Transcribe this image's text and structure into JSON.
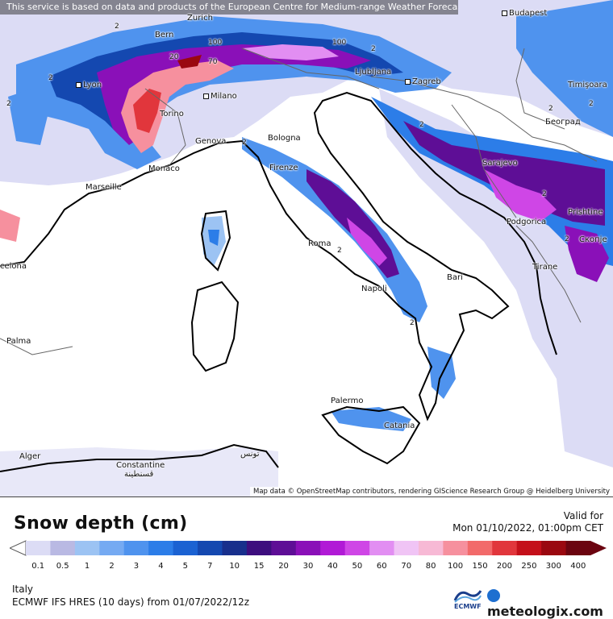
{
  "notice": "This service is based on data and products of the European Centre for Medium-range Weather Forecasts (ECMWF)",
  "attribution": "Map data © OpenStreetMap contributors, rendering GIScience Research Group @ Heidelberg University",
  "cities": [
    {
      "name": "Zurich"
    },
    {
      "name": "Budapest"
    },
    {
      "name": "Bern"
    },
    {
      "name": "Ljubljana"
    },
    {
      "name": "Zagreb"
    },
    {
      "name": "Lyon"
    },
    {
      "name": "Milano"
    },
    {
      "name": "Timişoara"
    },
    {
      "name": "Torino"
    },
    {
      "name": "Београд"
    },
    {
      "name": "Genova"
    },
    {
      "name": "Bologna"
    },
    {
      "name": "Monaco"
    },
    {
      "name": "Sarajevo"
    },
    {
      "name": "Firenze"
    },
    {
      "name": "Marseille"
    },
    {
      "name": "Podgorica"
    },
    {
      "name": "Prishtine"
    },
    {
      "name": "Скопје"
    },
    {
      "name": "Roma"
    },
    {
      "name": "celona"
    },
    {
      "name": "Bari"
    },
    {
      "name": "Tirane"
    },
    {
      "name": "Napoli"
    },
    {
      "name": "Palma"
    },
    {
      "name": "Palermo"
    },
    {
      "name": "Catania"
    },
    {
      "name": "Alger"
    },
    {
      "name": "Constantine"
    },
    {
      "name": "قسنطينة"
    },
    {
      "name": "تونس"
    }
  ],
  "contour_labels": [
    "2",
    "2",
    "2",
    "2",
    "100",
    "100",
    "70",
    "20",
    "2",
    "2",
    "2",
    "2",
    "2",
    "2",
    "2",
    "2"
  ],
  "legend": {
    "title": "Snow depth (cm)",
    "valid_label": "Valid for",
    "valid_time": "Mon 01/10/2022, 01:00pm CET",
    "ticks": [
      "0.1",
      "0.5",
      "1",
      "2",
      "3",
      "4",
      "5",
      "7",
      "10",
      "15",
      "20",
      "30",
      "40",
      "50",
      "60",
      "70",
      "80",
      "100",
      "150",
      "200",
      "250",
      "300",
      "400"
    ],
    "colors": [
      "#dcdcf5",
      "#b9b9e3",
      "#9cc3f3",
      "#75aaf2",
      "#4f93ee",
      "#2c7de8",
      "#1b62d2",
      "#1448b0",
      "#182f8c",
      "#3d0e7e",
      "#5e0e96",
      "#8a10b8",
      "#b11ad6",
      "#cf46e6",
      "#e28ef2",
      "#f0c4f5",
      "#f7b9d5",
      "#f6909e",
      "#f26a6a",
      "#e1363c",
      "#c4101a",
      "#9a0810",
      "#6b0410"
    ],
    "region": "Italy",
    "model": "ECMWF IFS HRES (10 days) from 01/07/2022/12z",
    "ecmwf_label": "ECMWF",
    "brand": "meteologix.com"
  }
}
